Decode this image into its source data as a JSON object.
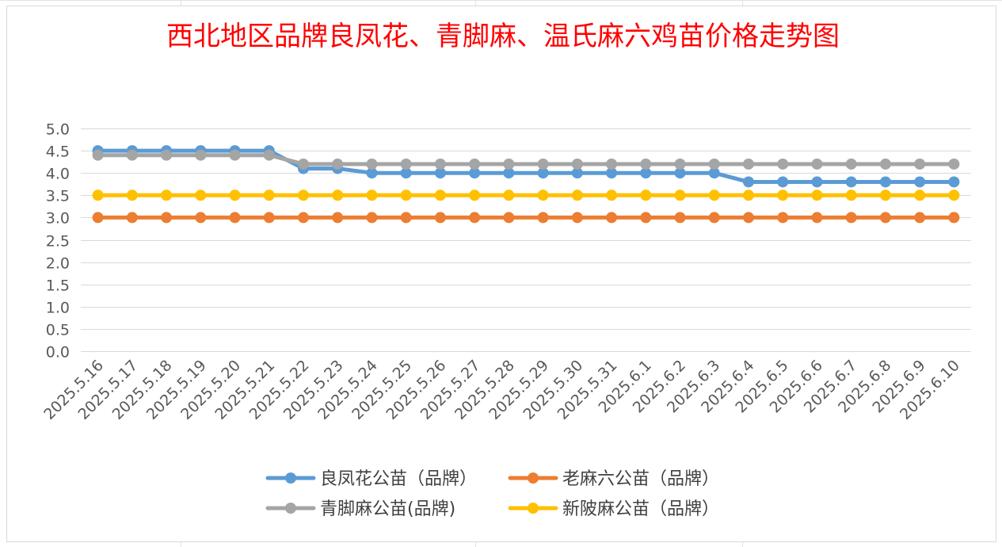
{
  "chart_data": {
    "type": "line",
    "title": "西北地区品牌良凤花、青脚麻、温氏麻六鸡苗价格走势图",
    "xlabel": "",
    "ylabel": "",
    "ylim": [
      0,
      5
    ],
    "y_ticks": [
      "0.0",
      "0.5",
      "1.0",
      "1.5",
      "2.0",
      "2.5",
      "3.0",
      "3.5",
      "4.0",
      "4.5",
      "5.0"
    ],
    "grid": true,
    "legend_position": "bottom",
    "categories": [
      "2025.5.16",
      "2025.5.17",
      "2025.5.18",
      "2025.5.19",
      "2025.5.20",
      "2025.5.21",
      "2025.5.22",
      "2025.5.23",
      "2025.5.24",
      "2025.5.25",
      "2025.5.26",
      "2025.5.27",
      "2025.5.28",
      "2025.5.29",
      "2025.5.30",
      "2025.5.31",
      "2025.6.1",
      "2025.6.2",
      "2025.6.3",
      "2025.6.4",
      "2025.6.5",
      "2025.6.6",
      "2025.6.7",
      "2025.6.8",
      "2025.6.9",
      "2025.6.10"
    ],
    "series": [
      {
        "name": "良凤花公苗（品牌）",
        "color": "#5b9bd5",
        "values": [
          4.5,
          4.5,
          4.5,
          4.5,
          4.5,
          4.5,
          4.1,
          4.1,
          4.0,
          4.0,
          4.0,
          4.0,
          4.0,
          4.0,
          4.0,
          4.0,
          4.0,
          4.0,
          4.0,
          3.8,
          3.8,
          3.8,
          3.8,
          3.8,
          3.8,
          3.8
        ]
      },
      {
        "name": "老麻六公苗（品牌）",
        "color": "#ed7d31",
        "values": [
          3.0,
          3.0,
          3.0,
          3.0,
          3.0,
          3.0,
          3.0,
          3.0,
          3.0,
          3.0,
          3.0,
          3.0,
          3.0,
          3.0,
          3.0,
          3.0,
          3.0,
          3.0,
          3.0,
          3.0,
          3.0,
          3.0,
          3.0,
          3.0,
          3.0,
          3.0
        ]
      },
      {
        "name": "青脚麻公苗(品牌)",
        "color": "#a5a5a5",
        "values": [
          4.4,
          4.4,
          4.4,
          4.4,
          4.4,
          4.4,
          4.2,
          4.2,
          4.2,
          4.2,
          4.2,
          4.2,
          4.2,
          4.2,
          4.2,
          4.2,
          4.2,
          4.2,
          4.2,
          4.2,
          4.2,
          4.2,
          4.2,
          4.2,
          4.2,
          4.2
        ]
      },
      {
        "name": "新陂麻公苗（品牌）",
        "color": "#ffc000",
        "values": [
          3.5,
          3.5,
          3.5,
          3.5,
          3.5,
          3.5,
          3.5,
          3.5,
          3.5,
          3.5,
          3.5,
          3.5,
          3.5,
          3.5,
          3.5,
          3.5,
          3.5,
          3.5,
          3.5,
          3.5,
          3.5,
          3.5,
          3.5,
          3.5,
          3.5,
          3.5
        ]
      }
    ]
  }
}
